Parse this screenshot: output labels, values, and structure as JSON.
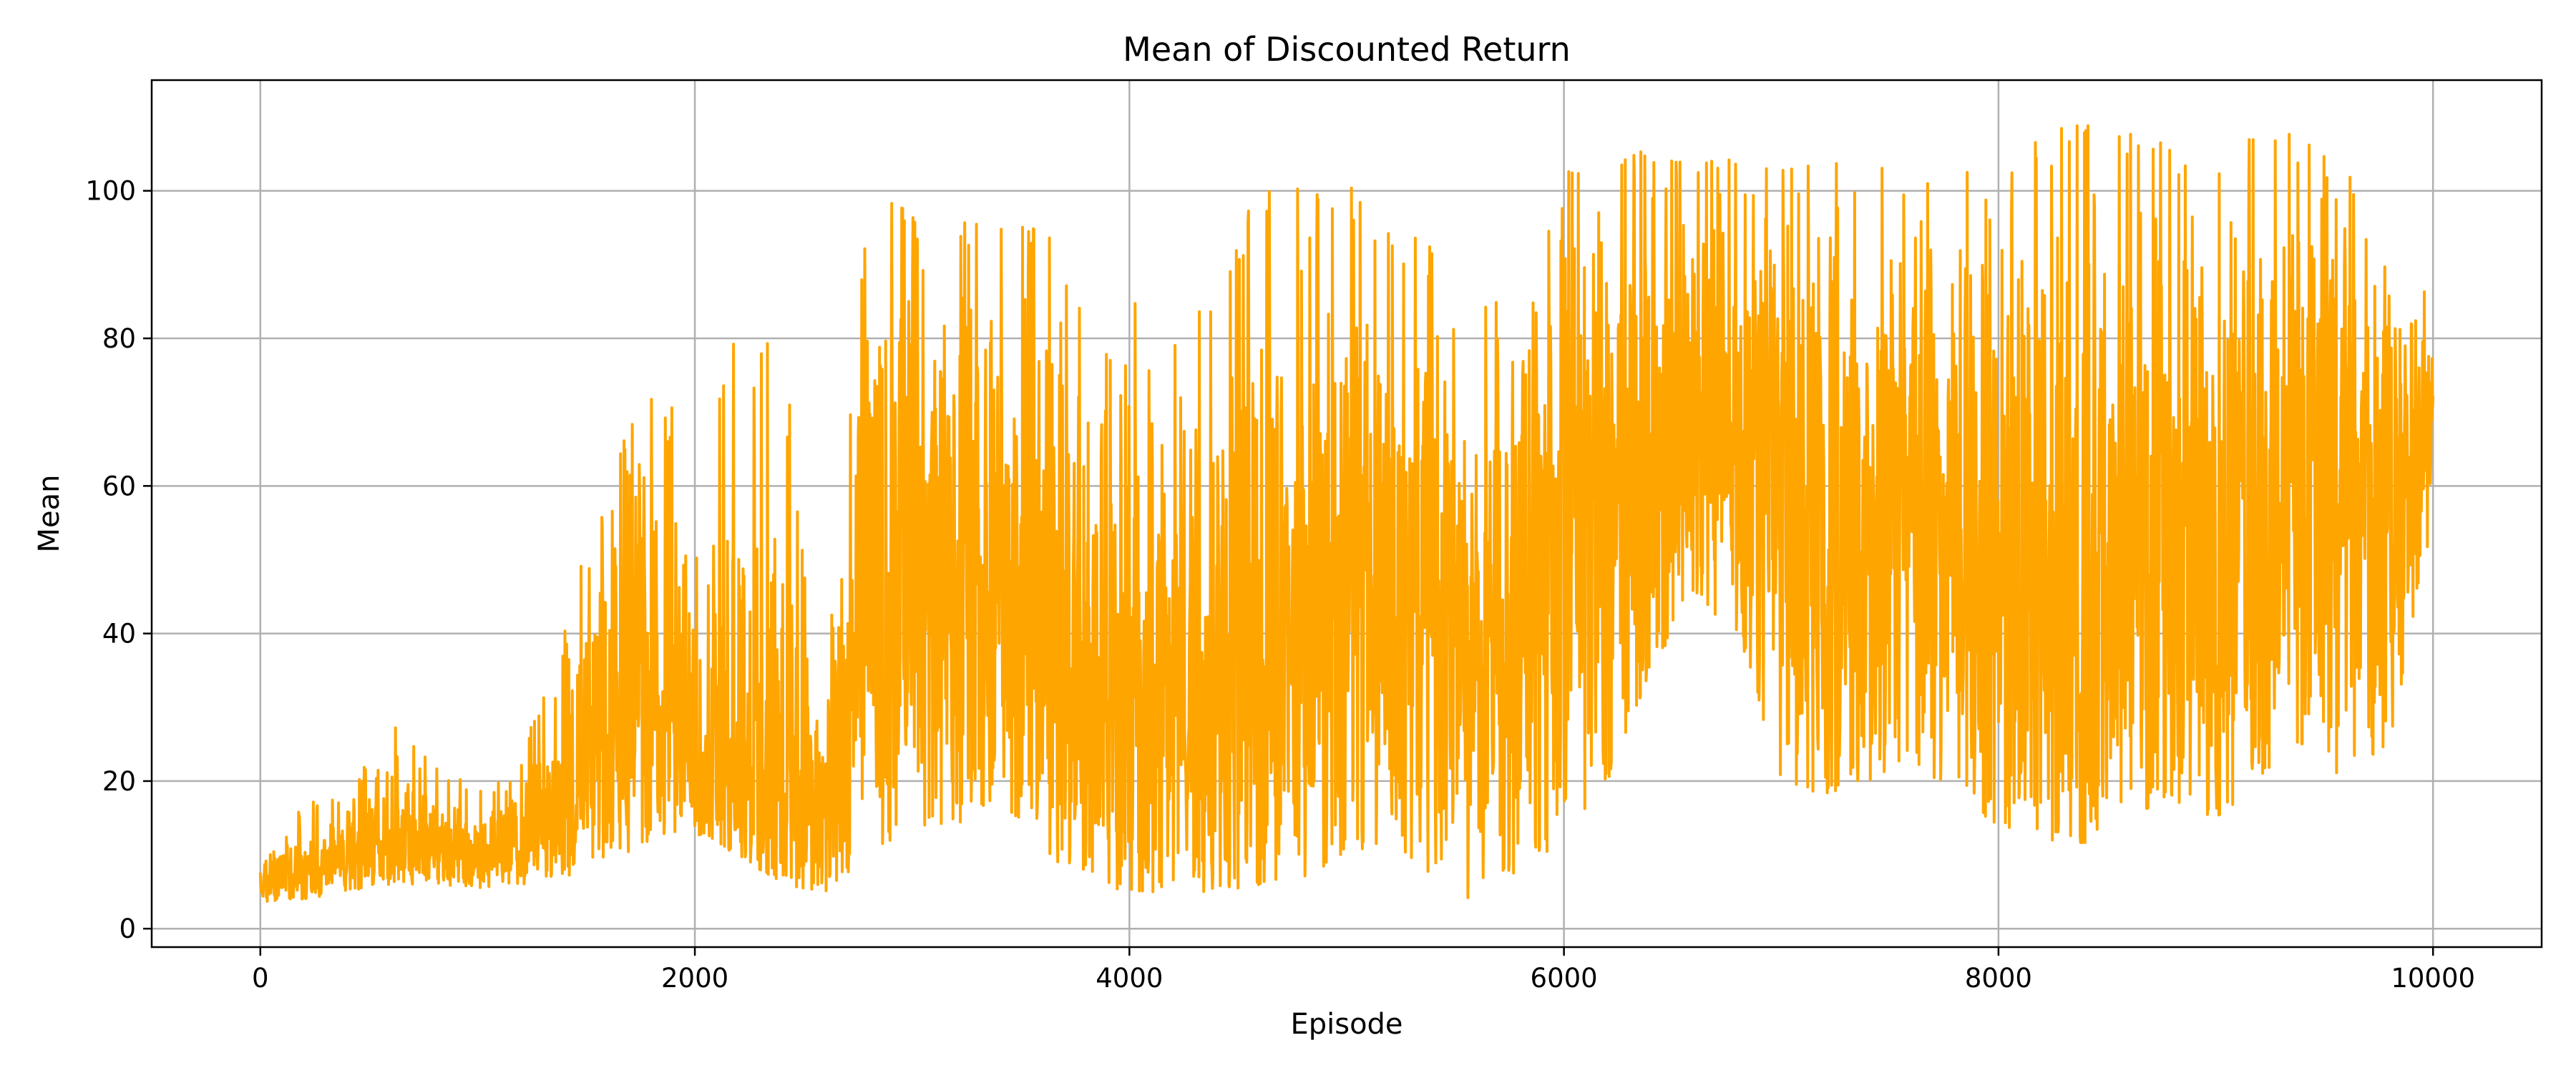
{
  "chart_data": {
    "type": "line",
    "title": "Mean of Discounted Return",
    "xlabel": "Episode",
    "ylabel": "Mean",
    "xlim": [
      -500,
      10500
    ],
    "ylim": [
      -2.5,
      115
    ],
    "xticks": [
      0,
      2000,
      4000,
      6000,
      8000,
      10000
    ],
    "yticks": [
      0,
      20,
      40,
      60,
      80,
      100
    ],
    "grid": true,
    "legend": "none",
    "colors": {
      "line": "#ffa500",
      "grid": "#b0b0b0",
      "axes": "#000000"
    },
    "series": [
      {
        "episodes": [
          0,
          10000
        ],
        "envelope": {
          "x": [
            0,
            200,
            400,
            600,
            800,
            1000,
            1200,
            1400,
            1600,
            1800,
            2000,
            2200,
            2400,
            2600,
            2800,
            3000,
            3200,
            3400,
            3600,
            3800,
            4000,
            4200,
            4400,
            4600,
            4800,
            5000,
            5200,
            5400,
            5600,
            5800,
            6000,
            6200,
            6400,
            6600,
            6800,
            7000,
            7200,
            7400,
            7600,
            7800,
            8000,
            8200,
            8400,
            8600,
            8800,
            9000,
            9200,
            9400,
            9600,
            9800,
            10000
          ],
          "low": [
            3.5,
            4,
            5,
            6,
            6,
            5.5,
            6,
            7,
            9,
            12,
            13,
            10,
            6,
            5,
            10,
            14,
            14,
            18,
            10,
            6,
            5,
            5,
            5,
            6,
            7,
            10,
            12,
            7,
            3,
            8,
            12,
            20,
            35,
            45,
            40,
            20,
            18,
            20,
            22,
            18,
            14,
            12,
            10,
            15,
            18,
            12,
            18,
            25,
            20,
            25,
            55
          ],
          "high": [
            8,
            17,
            18,
            28,
            22,
            19,
            22,
            45,
            58,
            80,
            60,
            82,
            78,
            45,
            100,
            97,
            96,
            95,
            96,
            82,
            85,
            83,
            84,
            102,
            100,
            101,
            98,
            92,
            84,
            86,
            103,
            103,
            106,
            105,
            104,
            103,
            104,
            107,
            106,
            104,
            101,
            108,
            109,
            108,
            106,
            107,
            107,
            108,
            104,
            88,
            88
          ],
          "mid": [
            6,
            9,
            11,
            14,
            12,
            11,
            13,
            20,
            28,
            35,
            30,
            30,
            25,
            18,
            50,
            55,
            55,
            55,
            50,
            40,
            35,
            35,
            38,
            45,
            48,
            55,
            55,
            50,
            40,
            48,
            60,
            65,
            70,
            75,
            72,
            65,
            62,
            65,
            68,
            62,
            58,
            55,
            55,
            58,
            60,
            58,
            62,
            68,
            60,
            60,
            72
          ]
        }
      }
    ]
  }
}
